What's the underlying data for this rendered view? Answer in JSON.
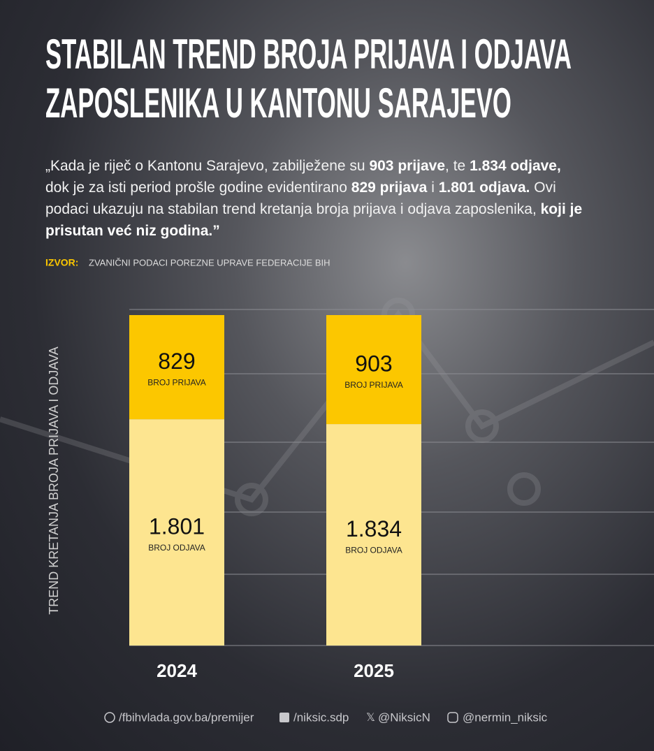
{
  "chart_data": {
    "type": "bar",
    "stacked": true,
    "title": [
      "STABILAN TREND BROJA PRIJAVA I ODJAVA",
      "ZAPOSLENIKA U KANTONU SARAJEVO"
    ],
    "subtitle": [
      {
        "text": "„Kada je riječ o Kantonu Sarajevo, zabilježene su ",
        "bold": false
      },
      {
        "text": "903 prijave",
        "bold": true
      },
      {
        "text": ", te ",
        "bold": false
      },
      {
        "text": "1.834 odjave,",
        "bold": true
      },
      {
        "text": " dok je za isti period prošle godine evidentirano ",
        "bold": false
      },
      {
        "text": "829 prijava",
        "bold": true
      },
      {
        "text": " i ",
        "bold": false
      },
      {
        "text": "1.801 odjava.",
        "bold": true
      },
      {
        "text": " Ovi podaci ukazuju na stabilan trend kretanja broja prijava i odjava zaposlenika, ",
        "bold": false
      },
      {
        "text": "koji je prisutan već niz godina.”",
        "bold": true
      }
    ],
    "source_label": "IZVOR:",
    "source": "ZVANIČNI PODACI POREZNE UPRAVE FEDERACIJE BIH",
    "y_label": "TREND KRETANJA BROJA PRIJAVA I ODJAVA",
    "categories": [
      "2024",
      "2025"
    ],
    "series": [
      {
        "name": "BROJ ODJAVA",
        "color": "#fde590",
        "values": [
          1801,
          1834
        ],
        "value_labels": [
          "1.801",
          "1.834"
        ]
      },
      {
        "name": "BROJ PRIJAVA",
        "color": "#fcc700",
        "values": [
          829,
          903
        ]
      }
    ]
  },
  "footer": [
    "/fbihvlada.gov.ba/premijer",
    "/niksic.sdp",
    "@NiksicN",
    "@nermin_niksic"
  ]
}
